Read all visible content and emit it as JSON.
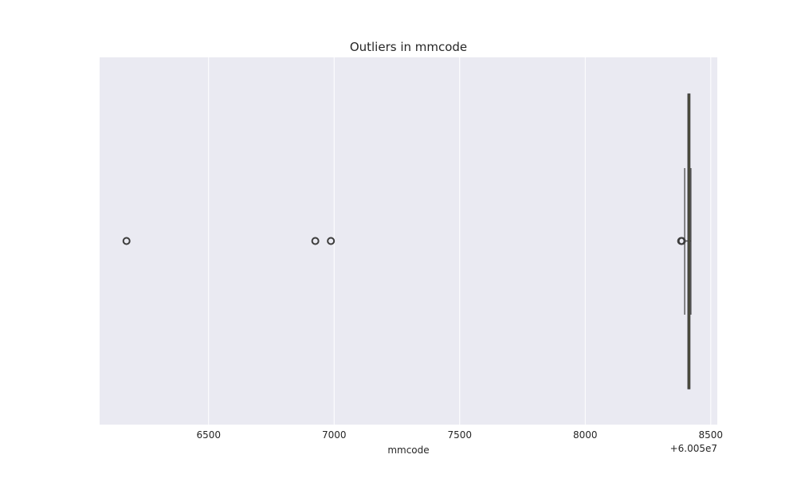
{
  "chart_data": {
    "type": "box",
    "orientation": "horizontal",
    "title": "Outliers in mmcode",
    "xlabel": "mmcode",
    "ylabel": "",
    "axis_offset_text": "+6.005e7",
    "xlim": [
      6066,
      8526
    ],
    "x_ticks": [
      6500,
      7000,
      7500,
      8000,
      8500
    ],
    "x_tick_labels": [
      "6500",
      "7000",
      "7500",
      "8000",
      "8500"
    ],
    "grid": "vertical",
    "box": {
      "q1": 8409,
      "median": 8412,
      "q3": 8417,
      "whisker_low": 8396,
      "whisker_high": 8421
    },
    "outliers": [
      6173,
      6925,
      6987,
      8382,
      8385
    ],
    "colors": {
      "background": "#eaeaf2",
      "grid": "#ffffff",
      "box_fill": "#8c8c3c",
      "box_edge": "#3d3d3d",
      "median": "#3d3d3d",
      "whisker": "#3d3d3d",
      "outlier_edge": "#3d3d3d"
    }
  }
}
